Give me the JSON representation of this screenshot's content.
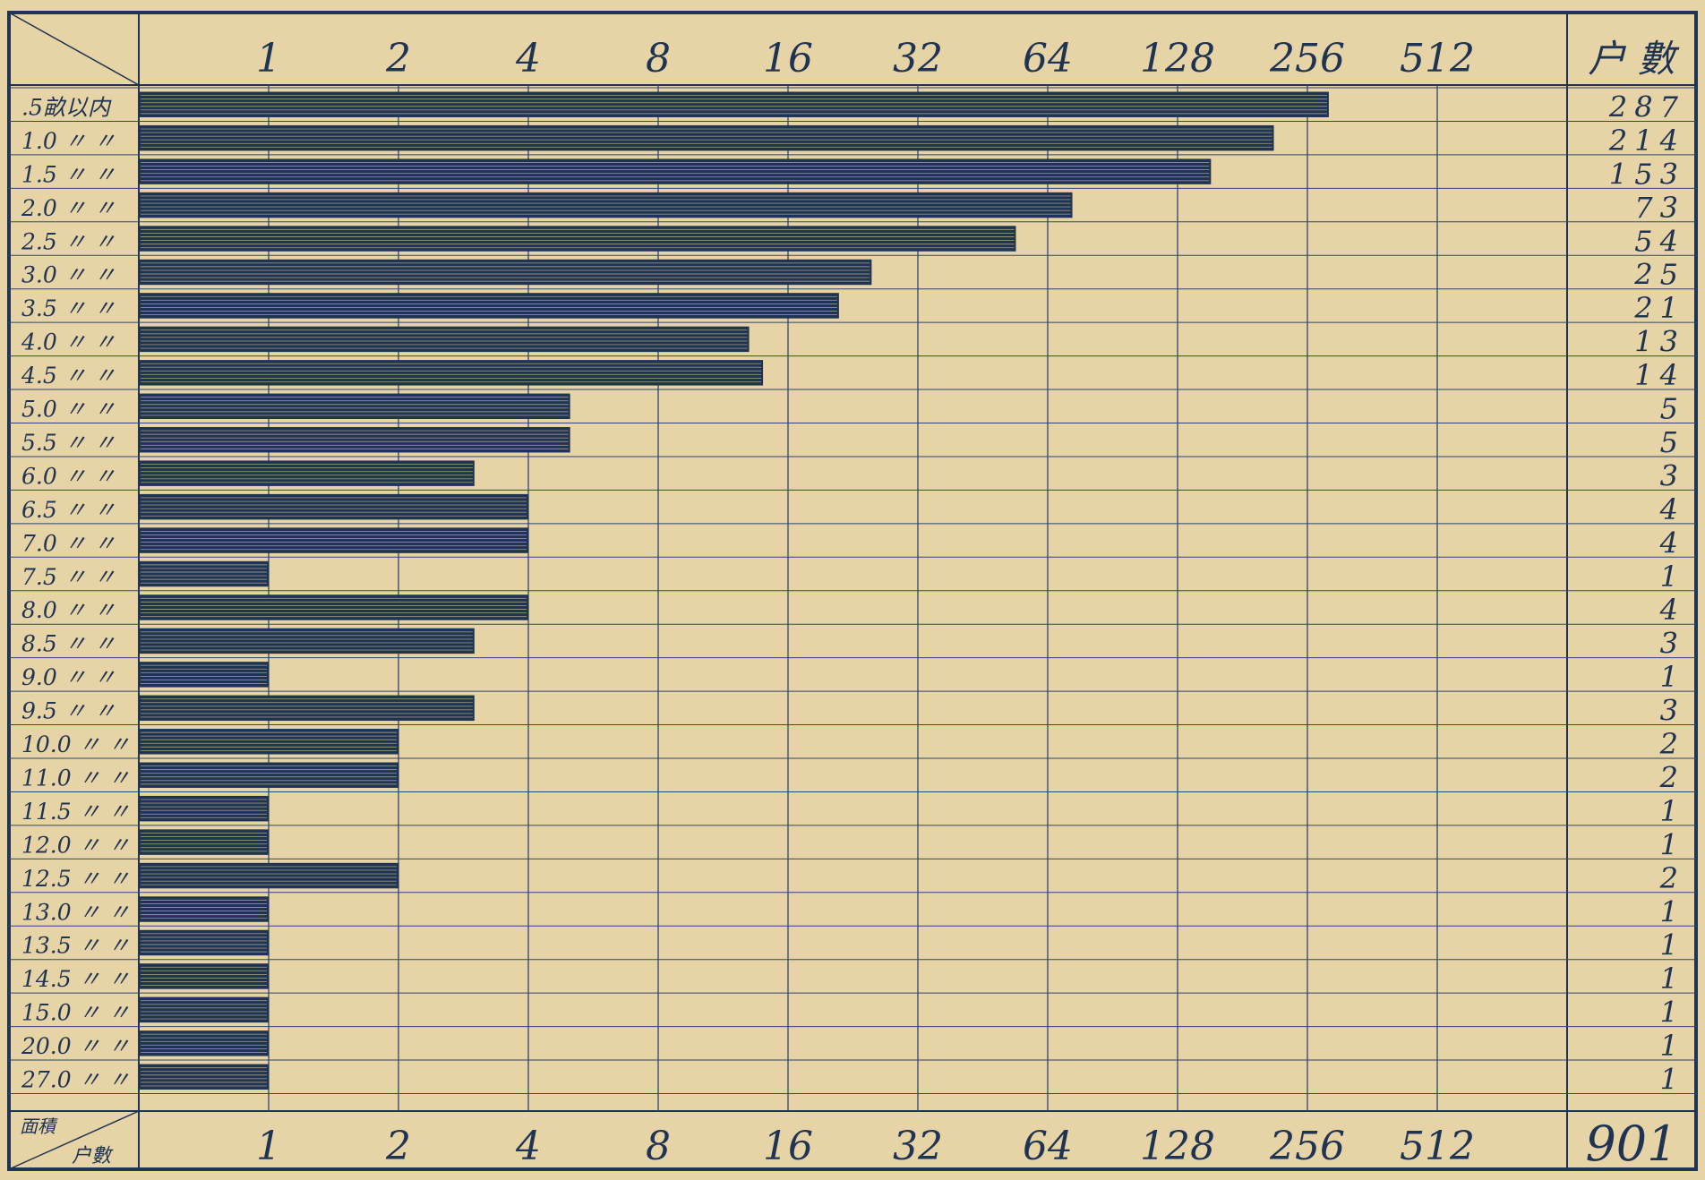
{
  "chart_data": {
    "type": "bar",
    "orientation": "horizontal",
    "x_scale": "log2",
    "x_ticks": [
      "1",
      "2",
      "4",
      "8",
      "16",
      "32",
      "64",
      "128",
      "256",
      "512"
    ],
    "xlim": [
      0.5,
      1024
    ],
    "grid": true,
    "corner_labels": {
      "top": "",
      "bottom_left": "面積",
      "bottom_right": "户數"
    },
    "count_header": "户 數",
    "total": "901",
    "categories": [
      ".5畝以内",
      "1.0 〃 〃",
      "1.5 〃 〃",
      "2.0 〃 〃",
      "2.5 〃 〃",
      "3.0 〃 〃",
      "3.5 〃 〃",
      "4.0 〃 〃",
      "4.5 〃 〃",
      "5.0 〃 〃",
      "5.5 〃 〃",
      "6.0 〃 〃",
      "6.5 〃 〃",
      "7.0 〃 〃",
      "7.5 〃 〃",
      "8.0 〃 〃",
      "8.5 〃 〃",
      "9.0 〃 〃",
      "9.5 〃 〃",
      "10.0 〃 〃",
      "11.0 〃 〃",
      "11.5 〃 〃",
      "12.0 〃 〃",
      "12.5 〃 〃",
      "13.0 〃 〃",
      "13.5 〃 〃",
      "14.5 〃 〃",
      "15.0 〃 〃",
      "20.0 〃 〃",
      "27.0 〃 〃"
    ],
    "values": [
      287,
      214,
      153,
      73,
      54,
      25,
      21,
      13,
      14,
      5,
      5,
      3,
      4,
      4,
      1,
      4,
      3,
      1,
      3,
      2,
      2,
      1,
      1,
      2,
      1,
      1,
      1,
      1,
      1,
      1
    ]
  },
  "colors": {
    "paper": "#e6d3a6",
    "ink": "#1f3352",
    "grid": "#2f4670"
  }
}
